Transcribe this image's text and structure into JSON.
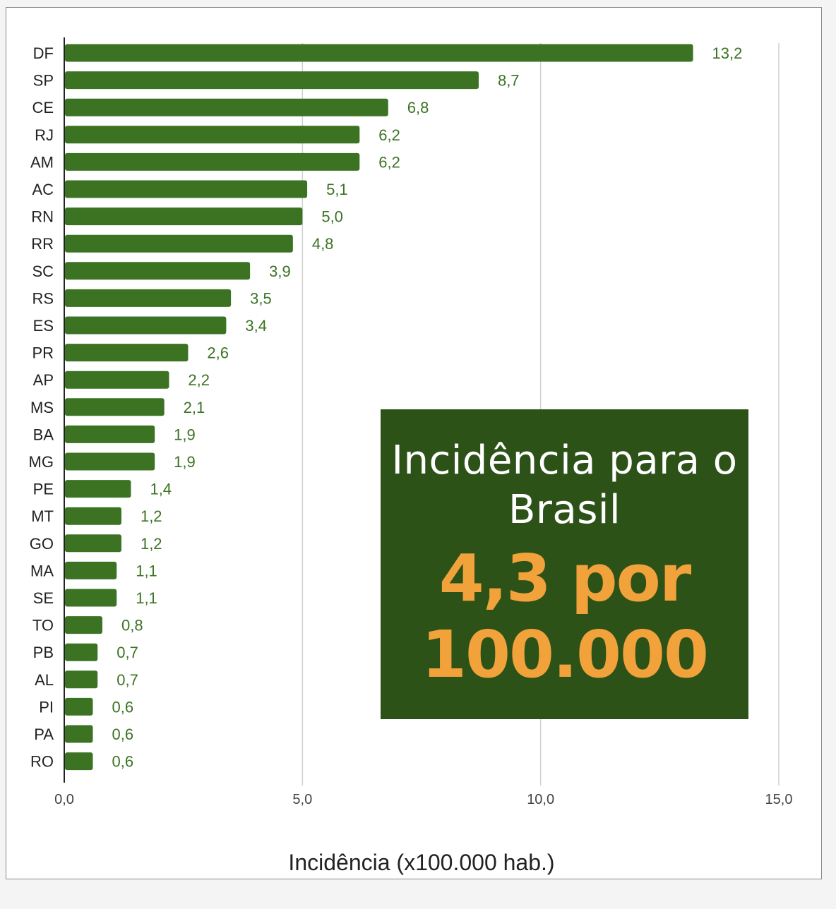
{
  "theme": {
    "bar_color": "#3b7323",
    "value_label_color": "#3b7323",
    "callout_bg": "#2d5218",
    "callout_text_color": "#ffffff",
    "callout_value_color": "#f2a23a",
    "grid_color": "#d0d0d0",
    "axis_color": "#222222"
  },
  "callout": {
    "title": "Incidência para o Brasil",
    "value": "4,3 por 100.000"
  },
  "chart_data": {
    "type": "bar",
    "orientation": "horizontal",
    "title": "",
    "xlabel": "Incidência (x100.000 hab.)",
    "ylabel": "",
    "xlim": [
      0,
      15
    ],
    "xticks": [
      0,
      5,
      10,
      15
    ],
    "xtick_labels": [
      "0,0",
      "5,0",
      "10,0",
      "15,0"
    ],
    "grid": "vertical",
    "categories": [
      "DF",
      "SP",
      "CE",
      "RJ",
      "AM",
      "AC",
      "RN",
      "RR",
      "SC",
      "RS",
      "ES",
      "PR",
      "AP",
      "MS",
      "BA",
      "MG",
      "PE",
      "MT",
      "GO",
      "MA",
      "SE",
      "TO",
      "PB",
      "AL",
      "PI",
      "PA",
      "RO"
    ],
    "values": [
      13.2,
      8.7,
      6.8,
      6.2,
      6.2,
      5.1,
      5.0,
      4.8,
      3.9,
      3.5,
      3.4,
      2.6,
      2.2,
      2.1,
      1.9,
      1.9,
      1.4,
      1.2,
      1.2,
      1.1,
      1.1,
      0.8,
      0.7,
      0.7,
      0.6,
      0.6,
      0.6
    ],
    "value_labels": [
      "13,2",
      "8,7",
      "6,8",
      "6,2",
      "6,2",
      "5,1",
      "5,0",
      "4,8",
      "3,9",
      "3,5",
      "3,4",
      "2,6",
      "2,2",
      "2,1",
      "1,9",
      "1,9",
      "1,4",
      "1,2",
      "1,2",
      "1,1",
      "1,1",
      "0,8",
      "0,7",
      "0,7",
      "0,6",
      "0,6",
      "0,6"
    ]
  }
}
